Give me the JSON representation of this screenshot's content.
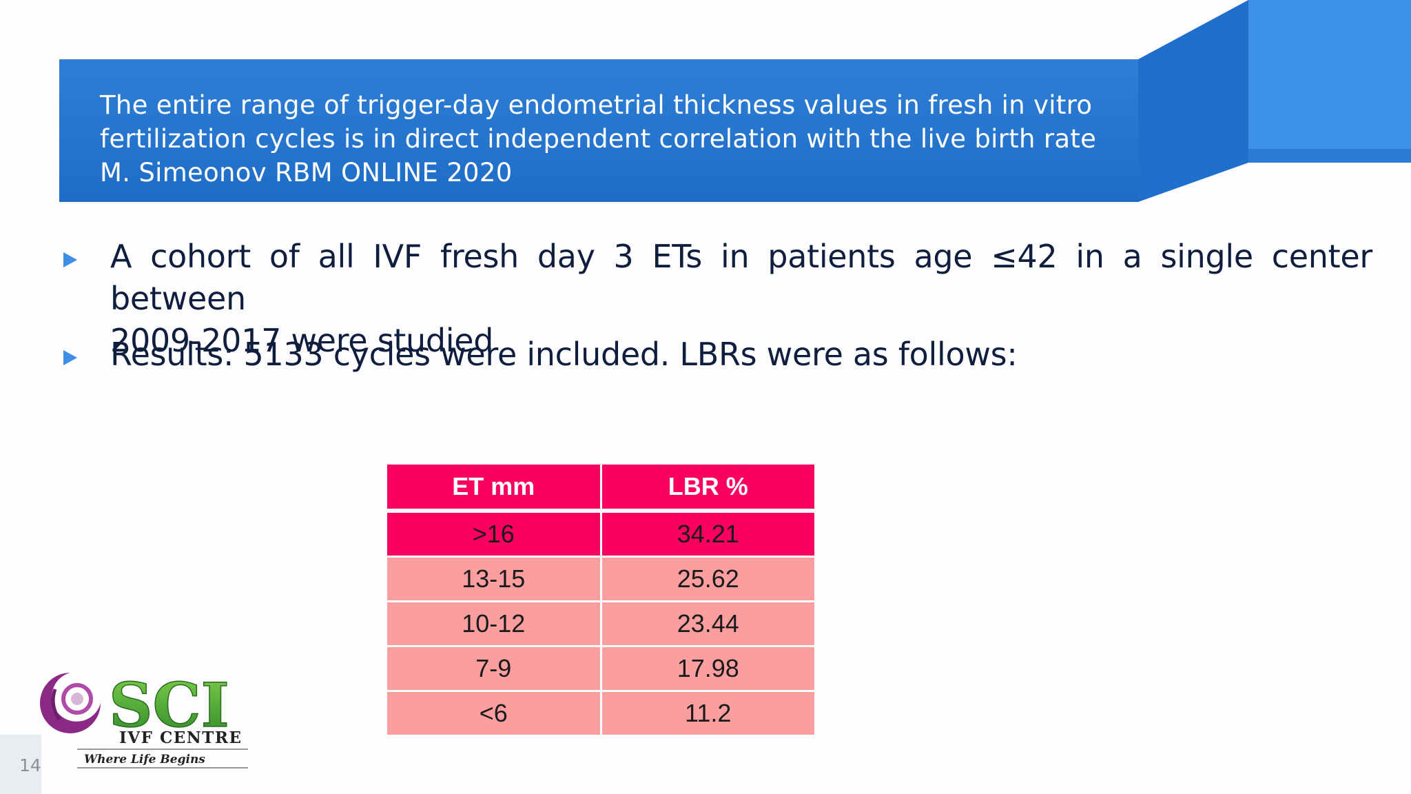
{
  "title": {
    "line1": "The entire range of trigger-day endometrial thickness values in fresh in vitro",
    "line2": "fertilization cycles is in direct independent correlation with the live birth rate",
    "line3": "M. Simeonov RBM ONLINE 2020"
  },
  "bullets": [
    {
      "line1": "A cohort of all IVF fresh day 3 ETs in patients age ≤42 in a single center between",
      "line2": "2009-2017 were studied"
    },
    {
      "line1": "Results: 5133 cycles were included. LBRs were as follows:"
    }
  ],
  "table": {
    "headers": [
      "ET mm",
      "LBR  %"
    ],
    "rows": [
      [
        ">16",
        "34.21"
      ],
      [
        "13-15",
        "25.62"
      ],
      [
        "10-12",
        "23.44"
      ],
      [
        "7-9",
        "17.98"
      ],
      [
        "<6",
        "11.2"
      ]
    ]
  },
  "logo": {
    "name": "SCI",
    "subtitle": "IVF CENTRE",
    "tagline": "Where Life Begins"
  },
  "slide_number": "14",
  "colors": {
    "title_band": "#1e6cc6",
    "accent_light_blue": "#3b8fe6",
    "bullet_arrow": "#3f8ee6",
    "table_header": "#fa0060",
    "table_row": "#fa9e9f",
    "body_text": "#0f1e3f"
  }
}
